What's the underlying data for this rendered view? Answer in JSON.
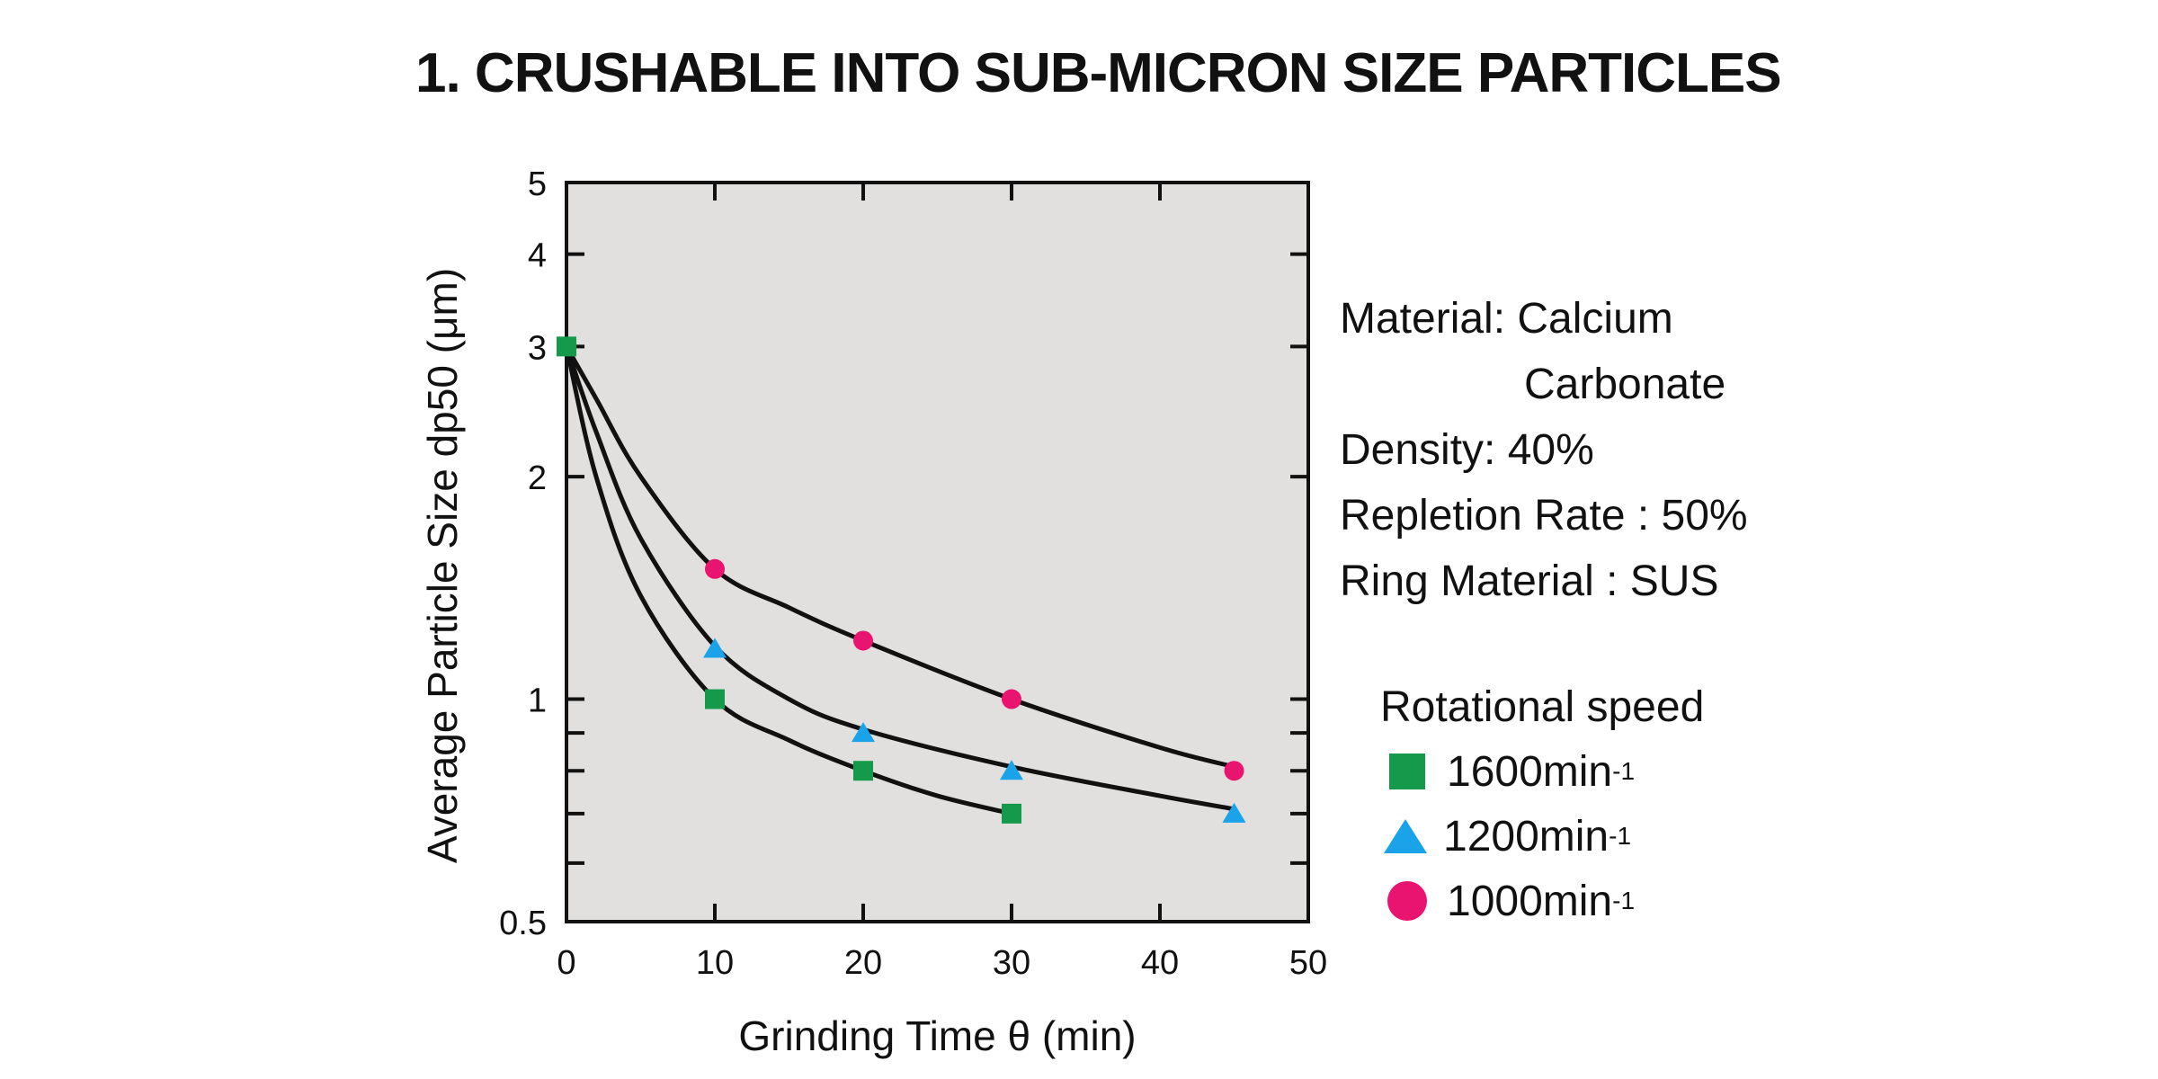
{
  "page": {
    "title": "1.  CRUSHABLE INTO SUB-MICRON SIZE PARTICLES"
  },
  "info": {
    "material_label": "Material: Calcium",
    "material_cont": "Carbonate",
    "density": "Density: 40%",
    "repletion": "Repletion Rate : 50%",
    "ring": "Ring Material : SUS"
  },
  "legend": {
    "title": "Rotational speed",
    "items": [
      {
        "label": "1600min",
        "sup": "-1",
        "marker": "square",
        "color": "#149a4a"
      },
      {
        "label": "1200min",
        "sup": "-1",
        "marker": "triangle",
        "color": "#1aa3e8"
      },
      {
        "label": "1000min",
        "sup": "-1",
        "marker": "circle",
        "color": "#e8146f"
      }
    ]
  },
  "chart_data": {
    "type": "scatter",
    "title": "",
    "xlabel": "Grinding Time θ (min)",
    "ylabel": "Average Particle Size dp50 (μm)",
    "xlim": [
      0,
      50
    ],
    "ylim": [
      0.5,
      5
    ],
    "yscale": "log",
    "x_ticks": [
      0,
      10,
      20,
      30,
      40,
      50
    ],
    "y_tick_labels": [
      "0.5",
      "1",
      "2",
      "3",
      "4",
      "5"
    ],
    "y_ticks": [
      0.5,
      1,
      2,
      3,
      4,
      5
    ],
    "y_minor_ticks": [
      0.6,
      0.7,
      0.8,
      0.9
    ],
    "series": [
      {
        "name": "1600min-1",
        "marker": "square",
        "color": "#149a4a",
        "points": [
          [
            0,
            3.0
          ],
          [
            10,
            1.0
          ],
          [
            20,
            0.8
          ],
          [
            30,
            0.7
          ]
        ],
        "curve": [
          [
            0,
            3.0
          ],
          [
            2,
            2.0
          ],
          [
            5,
            1.38
          ],
          [
            10,
            1.0
          ],
          [
            15,
            0.88
          ],
          [
            20,
            0.8
          ],
          [
            25,
            0.74
          ],
          [
            30,
            0.7
          ]
        ]
      },
      {
        "name": "1200min-1",
        "marker": "triangle",
        "color": "#1aa3e8",
        "points": [
          [
            10,
            1.17
          ],
          [
            20,
            0.9
          ],
          [
            30,
            0.8
          ],
          [
            45,
            0.7
          ]
        ],
        "curve": [
          [
            0,
            3.0
          ],
          [
            2,
            2.3
          ],
          [
            5,
            1.65
          ],
          [
            10,
            1.18
          ],
          [
            15,
            1.0
          ],
          [
            20,
            0.91
          ],
          [
            30,
            0.81
          ],
          [
            40,
            0.74
          ],
          [
            45,
            0.71
          ]
        ]
      },
      {
        "name": "1000min-1",
        "marker": "circle",
        "color": "#e8146f",
        "points": [
          [
            10,
            1.5
          ],
          [
            20,
            1.2
          ],
          [
            30,
            1.0
          ],
          [
            45,
            0.8
          ]
        ],
        "curve": [
          [
            0,
            3.0
          ],
          [
            2,
            2.55
          ],
          [
            5,
            2.0
          ],
          [
            10,
            1.5
          ],
          [
            15,
            1.33
          ],
          [
            20,
            1.2
          ],
          [
            30,
            1.0
          ],
          [
            40,
            0.86
          ],
          [
            45,
            0.81
          ]
        ]
      }
    ]
  }
}
